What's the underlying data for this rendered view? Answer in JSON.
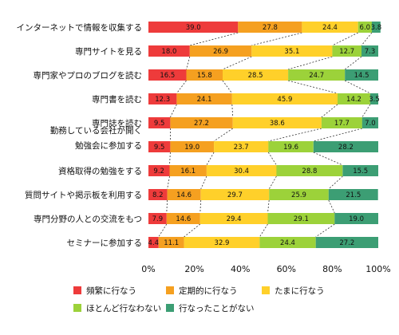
{
  "chart_data": {
    "type": "bar",
    "stacked": true,
    "orientation": "horizontal",
    "categories": [
      [
        "インターネットで情報を収集する"
      ],
      [
        "専門サイトを見る"
      ],
      [
        "専門家やプロのブログを読む"
      ],
      [
        "専門書を読む"
      ],
      [
        "専門誌を読む"
      ],
      [
        "勤務している会社が開く",
        "勉強会に参加する"
      ],
      [
        "資格取得の勉強をする"
      ],
      [
        "質問サイトや掲示板を利用する"
      ],
      [
        "専門分野の人との交流をもつ"
      ],
      [
        "セミナーに参加する"
      ]
    ],
    "series": [
      {
        "name": "頻繁に行なう",
        "color": "#ee3b3b",
        "values": [
          39.0,
          18.0,
          16.5,
          12.3,
          9.5,
          9.5,
          9.2,
          8.2,
          7.9,
          4.4
        ]
      },
      {
        "name": "定期的に行なう",
        "color": "#f5a020",
        "values": [
          27.8,
          26.9,
          15.8,
          24.1,
          27.2,
          19.0,
          16.1,
          14.6,
          14.6,
          11.1
        ]
      },
      {
        "name": "たまに行なう",
        "color": "#ffd02a",
        "values": [
          24.4,
          35.1,
          28.5,
          45.9,
          38.6,
          23.7,
          30.4,
          29.7,
          29.4,
          32.9
        ]
      },
      {
        "name": "ほとんど行なわない",
        "color": "#9cd23a",
        "values": [
          6.0,
          12.7,
          24.7,
          14.2,
          17.7,
          19.6,
          28.8,
          25.9,
          29.1,
          24.4
        ]
      },
      {
        "name": "行なったことがない",
        "color": "#3c9e74",
        "values": [
          3.8,
          7.3,
          14.5,
          3.5,
          7.0,
          28.2,
          15.5,
          21.5,
          19.0,
          27.2
        ]
      }
    ],
    "xticks": [
      "0%",
      "20%",
      "40%",
      "60%",
      "80%",
      "100%"
    ],
    "xlim": [
      0,
      100
    ],
    "legend_position": "bottom"
  }
}
